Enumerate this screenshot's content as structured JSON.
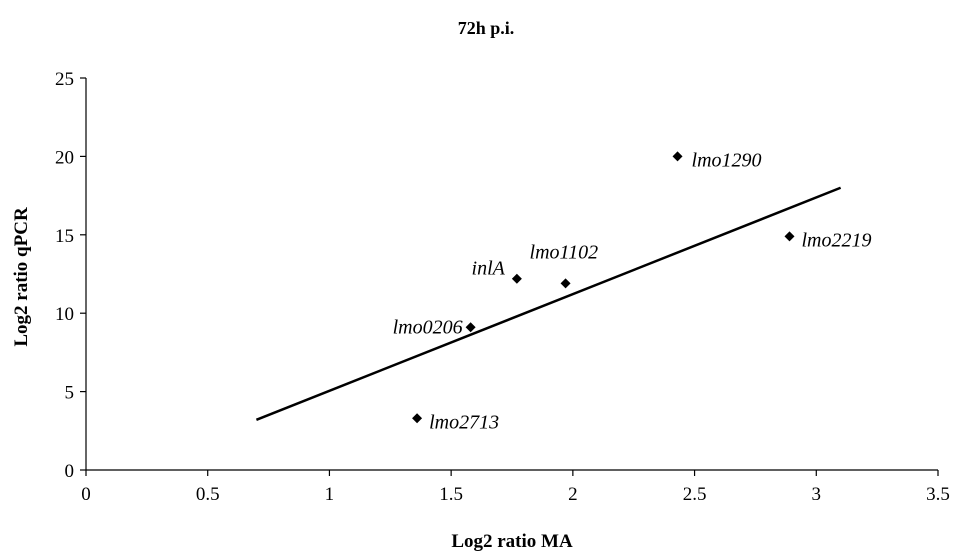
{
  "chart_data": {
    "type": "scatter",
    "title": "72h p.i.",
    "xlabel": "Log2 ratio MA",
    "ylabel": "Log2 ratio qPCR",
    "xlim": [
      0,
      3.5
    ],
    "ylim": [
      0,
      25
    ],
    "xticks": [
      0,
      0.5,
      1,
      1.5,
      2,
      2.5,
      3,
      3.5
    ],
    "yticks": [
      0,
      5,
      10,
      15,
      20,
      25
    ],
    "xtick_labels": [
      "0",
      "0.5",
      "1",
      "1.5",
      "2",
      "2.5",
      "3",
      "3.5"
    ],
    "ytick_labels": [
      "0",
      "5",
      "10",
      "15",
      "20",
      "25"
    ],
    "grid": false,
    "legend": "none",
    "marker": "diamond",
    "color": "#000000",
    "points": [
      {
        "label": "lmo1290",
        "x": 2.43,
        "y": 20.0
      },
      {
        "label": "lmo2219",
        "x": 2.89,
        "y": 14.9
      },
      {
        "label": "lmo1102",
        "x": 1.97,
        "y": 11.9
      },
      {
        "label": "inlA",
        "x": 1.77,
        "y": 12.2
      },
      {
        "label": "lmo0206",
        "x": 1.58,
        "y": 9.1
      },
      {
        "label": "lmo2713",
        "x": 1.36,
        "y": 3.3
      }
    ],
    "trendline": {
      "x": [
        0.7,
        3.1
      ],
      "y": [
        3.2,
        18.0
      ]
    }
  }
}
